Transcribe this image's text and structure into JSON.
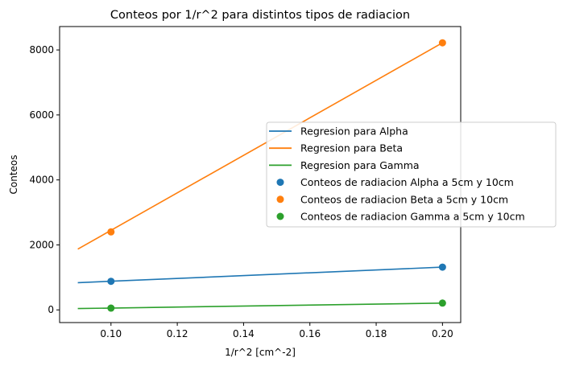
{
  "chart_data": {
    "type": "line",
    "title": "Conteos por 1/r^2 para distintos tipos de radiacion",
    "xlabel": "1/r^2 [cm^-2]",
    "ylabel": "Conteos",
    "xlim": [
      0.0845,
      0.2055
    ],
    "ylim": [
      -390,
      8720
    ],
    "xticks": [
      0.1,
      0.12,
      0.14,
      0.16,
      0.18,
      0.2
    ],
    "xtick_labels": [
      "0.10",
      "0.12",
      "0.14",
      "0.16",
      "0.18",
      "0.20"
    ],
    "yticks": [
      0,
      2000,
      4000,
      6000,
      8000
    ],
    "ytick_labels": [
      "0",
      "2000",
      "4000",
      "6000",
      "8000"
    ],
    "grid": false,
    "legend_position": "right",
    "series": [
      {
        "name": "Regresion para Alpha",
        "kind": "line",
        "color": "#1f77b4",
        "x": [
          0.09,
          0.2
        ],
        "y": [
          837,
          1316
        ]
      },
      {
        "name": "Regresion para Beta",
        "kind": "line",
        "color": "#ff7f0e",
        "x": [
          0.09,
          0.2
        ],
        "y": [
          1870,
          8220
        ]
      },
      {
        "name": "Regresion para Gamma",
        "kind": "line",
        "color": "#2ca02c",
        "x": [
          0.09,
          0.2
        ],
        "y": [
          40,
          210
        ]
      },
      {
        "name": "Conteos de radiacion Alpha a 5cm y 10cm",
        "kind": "scatter",
        "color": "#1f77b4",
        "x": [
          0.1,
          0.2
        ],
        "y": [
          880,
          1316
        ]
      },
      {
        "name": "Conteos de radiacion Beta a 5cm y 10cm",
        "kind": "scatter",
        "color": "#ff7f0e",
        "x": [
          0.1,
          0.2
        ],
        "y": [
          2400,
          8220
        ]
      },
      {
        "name": "Conteos de radiacion Gamma a 5cm y 10cm",
        "kind": "scatter",
        "color": "#2ca02c",
        "x": [
          0.1,
          0.2
        ],
        "y": [
          55,
          210
        ]
      }
    ]
  }
}
